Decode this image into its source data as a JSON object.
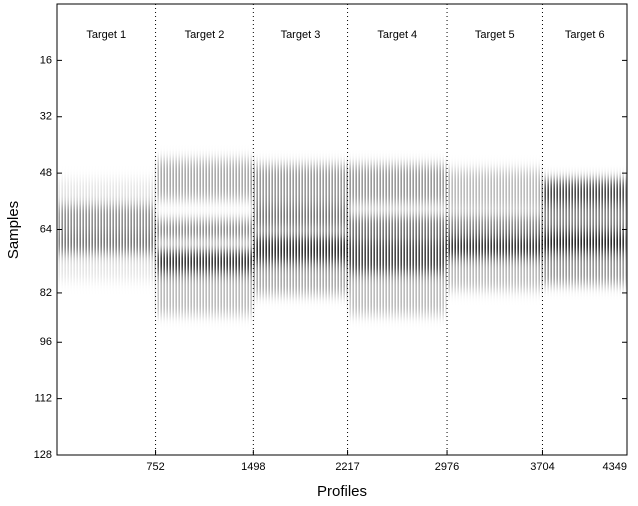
{
  "chart_data": {
    "type": "image",
    "x_label": "Profiles",
    "y_label": "Samples",
    "xlim": [
      0,
      4349
    ],
    "ylim": [
      128,
      0
    ],
    "xticks": [
      752,
      1498,
      2217,
      2976,
      3704,
      4349
    ],
    "yticks": [
      16,
      32,
      48,
      64,
      82,
      96,
      112,
      128
    ],
    "segments": [
      "Target 1",
      "Target 2",
      "Target 3",
      "Target 4",
      "Target 5",
      "Target 6"
    ],
    "dividers": true
  }
}
